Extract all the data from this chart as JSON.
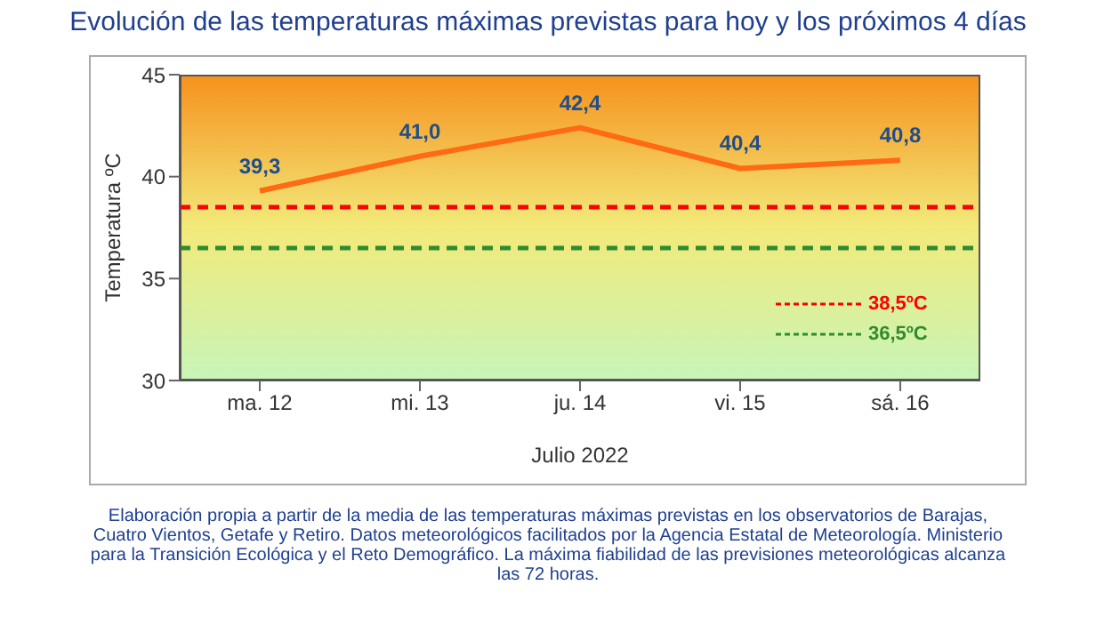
{
  "chart_data": {
    "type": "line",
    "title": "Evolución de las temperaturas máximas previstas para hoy y los próximos 4 días",
    "xlabel": "Julio 2022",
    "ylabel": "Temperatura ºC",
    "categories": [
      "ma. 12",
      "mi. 13",
      "ju. 14",
      "vi. 15",
      "sá. 16"
    ],
    "series": [
      {
        "color": "#ff6a13",
        "values": [
          39.3,
          41.0,
          42.4,
          40.4,
          40.8
        ],
        "value_labels": [
          "39,3",
          "41,0",
          "42,4",
          "40,4",
          "40,8"
        ]
      }
    ],
    "ylim": [
      30,
      45
    ],
    "yticks": [
      30,
      35,
      40,
      45
    ],
    "legend": "bottom right",
    "marker": "none",
    "line_style": "solid",
    "ref_lines": [
      {
        "axis": "y",
        "value": 38.5,
        "label": "38,5ºC",
        "color": "#ff0000",
        "line_style": "dashed"
      },
      {
        "axis": "y",
        "value": 36.5,
        "label": "36,5ºC",
        "color": "#2e8b2e",
        "line_style": "dashed"
      }
    ],
    "annotations": [
      "Elaboración propia a partir de la media de las temperaturas máximas previstas en los observatorios de Barajas, Cuatro Vientos, Getafe y Retiro. Datos meteorológicos facilitados por la Agencia Estatal de Meteorología. Ministerio para la Transición Ecológica y el Reto Demográfico. La máxima fiabilidad de las previsiones meteorológicas alcanza las 72 horas."
    ]
  }
}
